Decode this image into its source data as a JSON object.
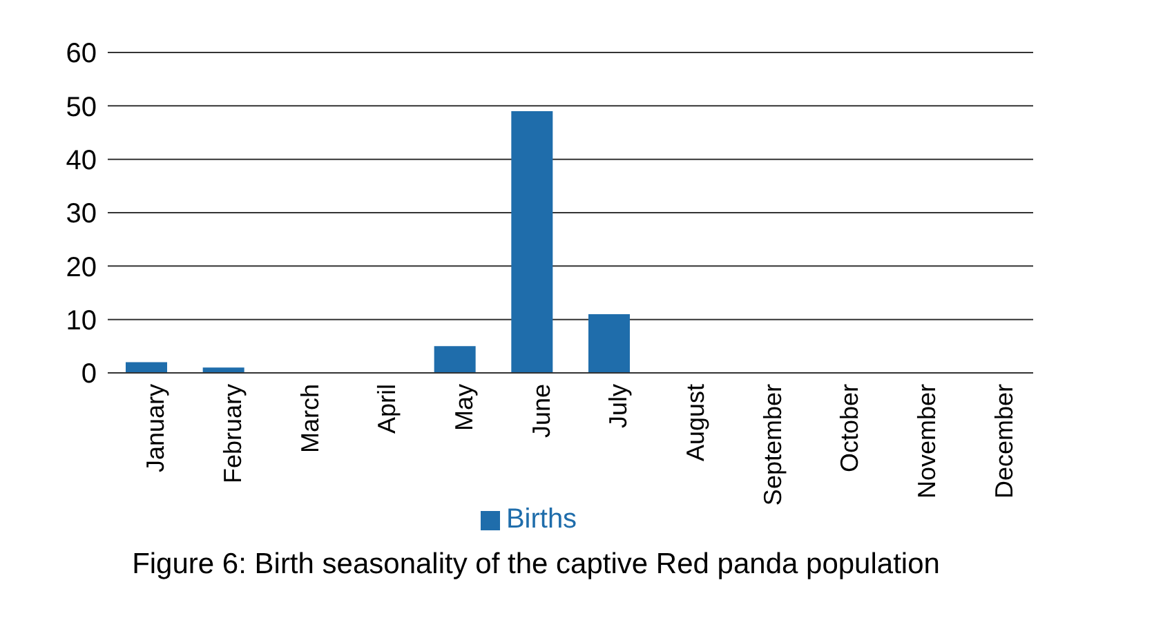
{
  "chart_data": {
    "type": "bar",
    "title": "Figure 6: Birth seasonality of the captive Red panda population",
    "categories": [
      "January",
      "February",
      "March",
      "April",
      "May",
      "June",
      "July",
      "August",
      "September",
      "October",
      "November",
      "December"
    ],
    "series": [
      {
        "name": "Births",
        "color": "#1f6dab",
        "values": [
          2,
          1,
          0,
          0,
          5,
          49,
          11,
          0,
          0,
          0,
          0,
          0
        ]
      }
    ],
    "ylim": [
      0,
      60
    ],
    "yticks": [
      0,
      10,
      20,
      30,
      40,
      50,
      60
    ],
    "grid": "y",
    "legend": "bottom"
  }
}
